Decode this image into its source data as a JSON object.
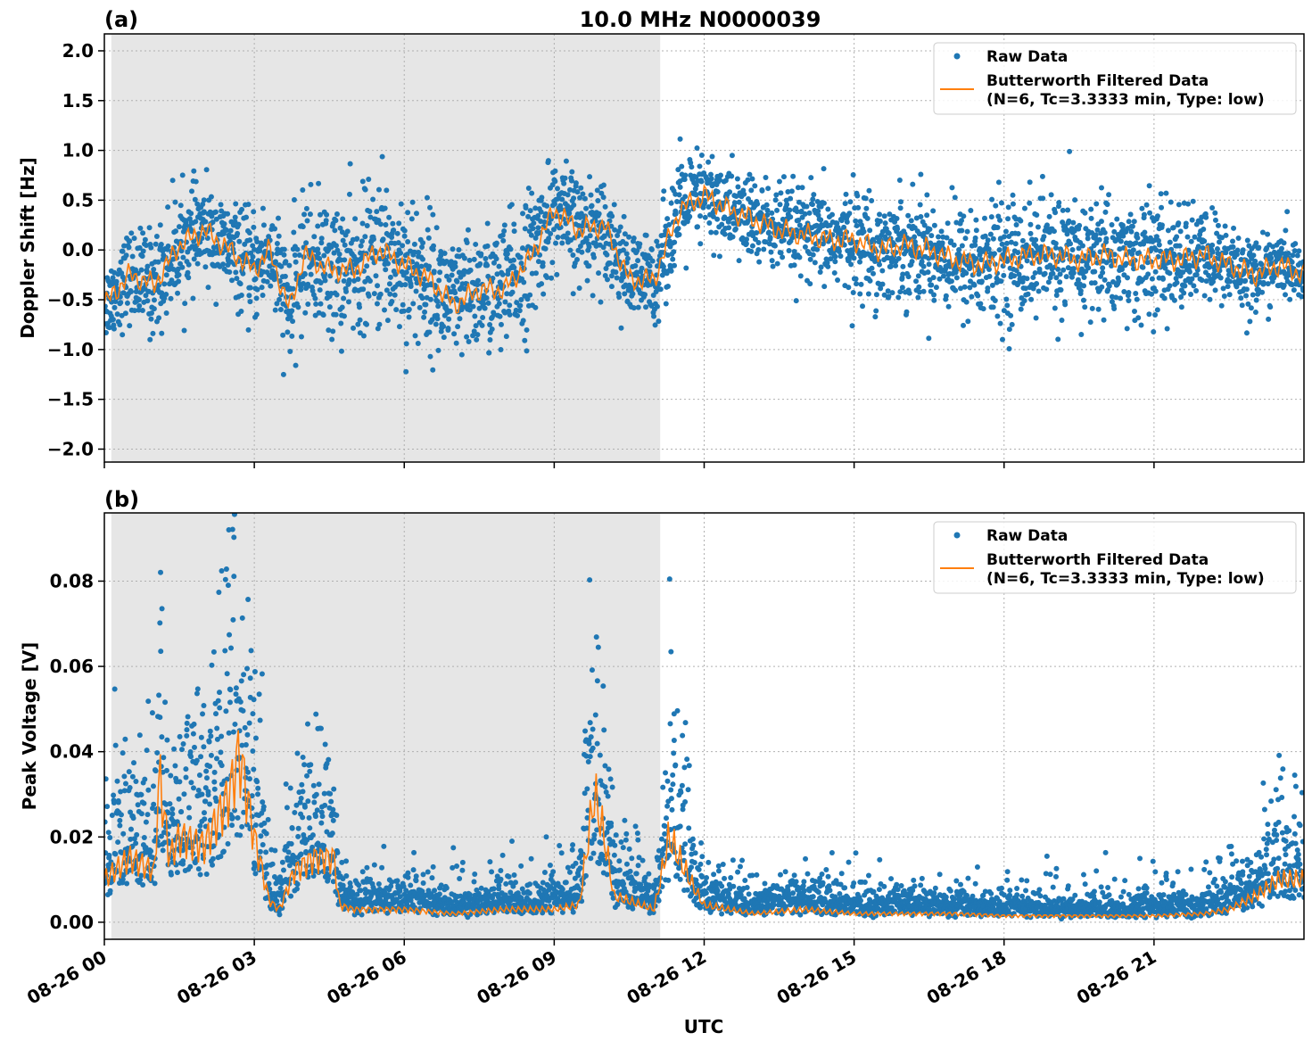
{
  "chart_data": [
    {
      "type": "scatter",
      "panel_label": "(a)",
      "title": "10.0 MHz N0000039",
      "xlabel": "",
      "ylabel": "Doppler Shift [Hz]",
      "xlim_hours": [
        0,
        24
      ],
      "ylim": [
        -2.13,
        2.17
      ],
      "yticks": [
        2.0,
        1.5,
        1.0,
        0.5,
        0.0,
        -0.5,
        -1.0,
        -1.5,
        -2.0
      ],
      "ytick_labels": [
        "2.0",
        "1.5",
        "1.0",
        "0.5",
        "0.0",
        "−0.5",
        "−1.0",
        "−1.5",
        "−2.0"
      ],
      "grid": true,
      "shaded_region_hours": [
        0.14,
        11.12
      ],
      "legend": {
        "placement": "top-right",
        "entries": [
          "Raw Data",
          "Butterworth Filtered Data\n(N=6, Tc=3.3333 min, Type: low)"
        ]
      },
      "series": [
        {
          "name": "Raw Data",
          "kind": "scatter",
          "color": "#1f77b4",
          "description_of_values": "dense samples around filtered curve",
          "x": [
            0,
            0.5,
            1,
            1.5,
            2,
            2.5,
            3,
            3.3,
            3.7,
            4,
            4.5,
            5,
            5.5,
            6,
            6.5,
            7,
            7.5,
            8,
            8.5,
            9,
            9.5,
            10,
            10.5,
            11,
            11.5,
            12,
            12.5,
            13,
            13.5,
            14,
            14.5,
            15,
            15.5,
            16,
            16.5,
            17,
            17.5,
            18,
            18.5,
            19,
            19.5,
            20,
            20.5,
            21,
            21.5,
            22,
            22.5,
            23,
            23.5,
            24
          ],
          "spread": [
            0.25,
            0.3,
            0.35,
            0.35,
            0.3,
            0.3,
            0.35,
            0.35,
            0.4,
            0.4,
            0.45,
            0.45,
            0.5,
            0.5,
            0.45,
            0.4,
            0.4,
            0.45,
            0.45,
            0.35,
            0.35,
            0.3,
            0.3,
            0.3,
            0.35,
            0.3,
            0.3,
            0.3,
            0.3,
            0.3,
            0.3,
            0.35,
            0.35,
            0.35,
            0.35,
            0.35,
            0.4,
            0.4,
            0.4,
            0.4,
            0.4,
            0.4,
            0.4,
            0.4,
            0.35,
            0.3,
            0.3,
            0.25,
            0.2,
            0.2
          ]
        },
        {
          "name": "Butterworth Filtered Data",
          "kind": "line",
          "color": "#ff7f0e",
          "x": [
            0,
            0.5,
            1,
            1.5,
            2,
            2.5,
            3,
            3.3,
            3.7,
            4,
            4.5,
            5,
            5.5,
            6,
            6.5,
            7,
            7.5,
            8,
            8.5,
            9,
            9.5,
            10,
            10.5,
            11,
            11.5,
            12,
            12.5,
            13,
            13.5,
            14,
            14.5,
            15,
            15.5,
            16,
            16.5,
            17,
            17.5,
            18,
            18.5,
            19,
            19.5,
            20,
            20.5,
            21,
            21.5,
            22,
            22.5,
            23,
            23.5,
            24
          ],
          "y": [
            -0.55,
            -0.25,
            -0.35,
            0.05,
            0.2,
            0.0,
            -0.2,
            0.0,
            -0.6,
            -0.05,
            -0.2,
            -0.2,
            0.0,
            -0.15,
            -0.3,
            -0.55,
            -0.4,
            -0.4,
            -0.1,
            0.4,
            0.2,
            0.25,
            -0.3,
            -0.3,
            0.4,
            0.55,
            0.4,
            0.3,
            0.2,
            0.15,
            0.1,
            0.1,
            0.0,
            0.05,
            0.0,
            -0.1,
            -0.15,
            -0.1,
            -0.05,
            -0.05,
            -0.1,
            -0.05,
            -0.1,
            -0.1,
            -0.1,
            -0.05,
            -0.15,
            -0.25,
            -0.15,
            -0.25
          ]
        }
      ]
    },
    {
      "type": "scatter",
      "panel_label": "(b)",
      "xlabel": "UTC",
      "ylabel": "Peak Voltage [V]",
      "xlim_hours": [
        0,
        24
      ],
      "ylim": [
        -0.004,
        0.096
      ],
      "yticks": [
        0.08,
        0.06,
        0.04,
        0.02,
        0.0
      ],
      "ytick_labels": [
        "0.08",
        "0.06",
        "0.04",
        "0.02",
        "0.00"
      ],
      "xtick_hours": [
        0,
        3,
        6,
        9,
        12,
        15,
        18,
        21
      ],
      "xtick_labels": [
        "08-26 00",
        "08-26 03",
        "08-26 06",
        "08-26 09",
        "08-26 12",
        "08-26 15",
        "08-26 18",
        "08-26 21"
      ],
      "grid": true,
      "shaded_region_hours": [
        0.14,
        11.12
      ],
      "legend": {
        "placement": "top-right",
        "entries": [
          "Raw Data",
          "Butterworth Filtered Data\n(N=6, Tc=3.3333 min, Type: low)"
        ]
      },
      "series": [
        {
          "name": "Raw Data",
          "kind": "scatter",
          "color": "#1f77b4"
        },
        {
          "name": "Butterworth Filtered Data",
          "kind": "line",
          "color": "#ff7f0e",
          "x": [
            0,
            0.5,
            1,
            1.1,
            1.3,
            1.5,
            2,
            2.5,
            2.7,
            3,
            3.3,
            3.5,
            3.8,
            4.2,
            4.6,
            4.7,
            5,
            6,
            7,
            8,
            9,
            9.5,
            9.8,
            10,
            10.2,
            10.5,
            11,
            11.3,
            11.5,
            11.8,
            12,
            13,
            14,
            15,
            16,
            17,
            18,
            19,
            20,
            21,
            22,
            22.5,
            23,
            23.5,
            24
          ],
          "y": [
            0.01,
            0.015,
            0.012,
            0.035,
            0.015,
            0.02,
            0.018,
            0.03,
            0.04,
            0.02,
            0.005,
            0.003,
            0.012,
            0.015,
            0.015,
            0.004,
            0.003,
            0.003,
            0.002,
            0.003,
            0.003,
            0.004,
            0.03,
            0.02,
            0.006,
            0.005,
            0.003,
            0.02,
            0.015,
            0.008,
            0.004,
            0.002,
            0.003,
            0.002,
            0.002,
            0.002,
            0.0015,
            0.0015,
            0.0015,
            0.0015,
            0.002,
            0.003,
            0.006,
            0.01,
            0.01
          ]
        }
      ]
    }
  ]
}
